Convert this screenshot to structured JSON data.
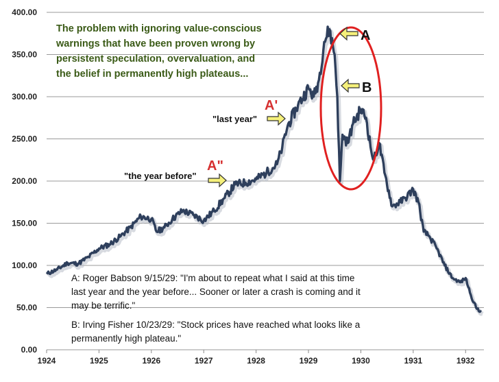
{
  "chart_data": {
    "type": "line",
    "title": "",
    "xlabel": "",
    "ylabel": "",
    "xlim": [
      1924.0,
      1932.35
    ],
    "ylim": [
      0,
      400
    ],
    "grid": true,
    "y_ticks": [
      "0.00",
      "50.00",
      "100.00",
      "150.00",
      "200.00",
      "250.00",
      "300.00",
      "350.00",
      "400.00"
    ],
    "x_ticks": [
      "1924",
      "1925",
      "1926",
      "1927",
      "1928",
      "1929",
      "1930",
      "1931",
      "1932"
    ],
    "line_color": "#2e3f5c",
    "series": [
      {
        "x": [
          1924.0,
          1924.2,
          1924.4,
          1924.6,
          1924.8,
          1925.0,
          1925.2,
          1925.4,
          1925.6,
          1925.8,
          1926.0,
          1926.1,
          1926.25,
          1926.4,
          1926.6,
          1926.8,
          1927.0,
          1927.2,
          1927.4,
          1927.6,
          1927.8,
          1928.0,
          1928.2,
          1928.4,
          1928.5,
          1928.6,
          1928.8,
          1929.0,
          1929.1,
          1929.2,
          1929.3,
          1929.4,
          1929.5,
          1929.55,
          1929.6,
          1929.65,
          1929.75,
          1929.85,
          1930.0,
          1930.1,
          1930.2,
          1930.25,
          1930.35,
          1930.45,
          1930.6,
          1930.75,
          1930.85,
          1931.0,
          1931.1,
          1931.2,
          1931.3,
          1931.45,
          1931.6,
          1931.75,
          1931.9,
          1932.0,
          1932.1,
          1932.2,
          1932.3
        ],
        "y": [
          90,
          95,
          103,
          102,
          110,
          120,
          125,
          134,
          145,
          158,
          155,
          140,
          145,
          155,
          165,
          160,
          153,
          165,
          180,
          196,
          198,
          202,
          210,
          220,
          240,
          265,
          290,
          310,
          300,
          320,
          365,
          380,
          350,
          300,
          200,
          255,
          245,
          268,
          285,
          275,
          235,
          225,
          245,
          210,
          170,
          175,
          180,
          190,
          175,
          140,
          135,
          120,
          100,
          85,
          80,
          85,
          65,
          50,
          45
        ]
      }
    ],
    "annotations": {
      "intro": [
        "The problem with ignoring value-conscious",
        "warnings that have been proven wrong by",
        "persistent speculation, overvaluation, and",
        "the belief in permanently high plateaus..."
      ],
      "mark_a": "A",
      "mark_b": "B",
      "mark_a_prime": "A'",
      "mark_a_double_prime": "A\"",
      "label_last_year": "\"last year\"",
      "label_year_before": "\"the year before\"",
      "quote_a": [
        "A: Roger Babson 9/15/29:  \"I'm about to repeat what I said at this time",
        "last year and the year before... Sooner or later a crash is coming and it",
        "may be terrific.\""
      ],
      "quote_b": [
        "B: Irving Fisher 10/23/29:  \"Stock prices have reached what looks like a",
        "permanently high plateau.\""
      ]
    },
    "colors": {
      "intro_text": "#3a5a16",
      "mark_red": "#d63030",
      "ellipse": "#e02020",
      "arrow_fill": "#f5f07a",
      "arrow_stroke": "#333333",
      "quote_text": "#111111"
    }
  }
}
